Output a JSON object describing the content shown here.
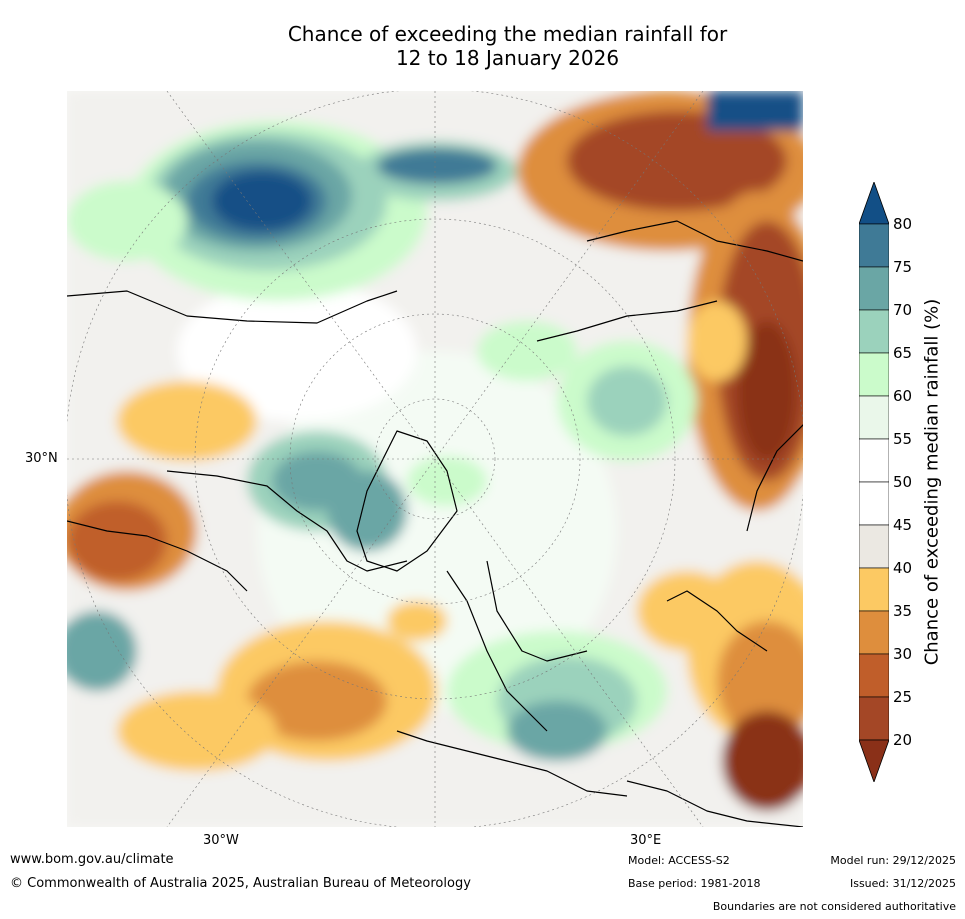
{
  "title": {
    "line1": "Chance of exceeding the median rainfall for",
    "line2": "12 to 18 January 2026"
  },
  "map": {
    "projection": "north-polar-stereographic",
    "lat_label": "30°N",
    "lon_labels": [
      "30°W",
      "30°E"
    ],
    "legend_position": "right"
  },
  "colorbar": {
    "label": "Chance of exceeding median rainfall (%)",
    "ticks": [
      "80",
      "75",
      "70",
      "65",
      "60",
      "55",
      "50",
      "45",
      "40",
      "35",
      "30",
      "25",
      "20"
    ],
    "bins": [
      {
        "range": "above 80",
        "color": "#124f86"
      },
      {
        "range": "75-80",
        "color": "#3f7a96"
      },
      {
        "range": "70-75",
        "color": "#6aa6a5"
      },
      {
        "range": "65-70",
        "color": "#9bd2bc"
      },
      {
        "range": "60-65",
        "color": "#cbfbcb"
      },
      {
        "range": "55-60",
        "color": "#eaf7ea"
      },
      {
        "range": "50-55",
        "color": "#ffffff"
      },
      {
        "range": "45-50",
        "color": "#ffffff"
      },
      {
        "range": "40-45",
        "color": "#ebe8e2"
      },
      {
        "range": "35-40",
        "color": "#fcc963"
      },
      {
        "range": "30-35",
        "color": "#de8e3d"
      },
      {
        "range": "25-30",
        "color": "#c05e2a"
      },
      {
        "range": "20-25",
        "color": "#a44726"
      },
      {
        "range": "below 20",
        "color": "#8a3018"
      }
    ]
  },
  "footer": {
    "url": "www.bom.gov.au/climate",
    "copyright": "© Commonwealth of Australia 2025, Australian Bureau of Meteorology",
    "model": "Model: ACCESS-S2",
    "base_period": "Base period: 1981-2018",
    "model_run": "Model run: 29/12/2025",
    "issued": "Issued: 31/12/2025",
    "disclaimer": "Boundaries are not considered authoritative"
  }
}
